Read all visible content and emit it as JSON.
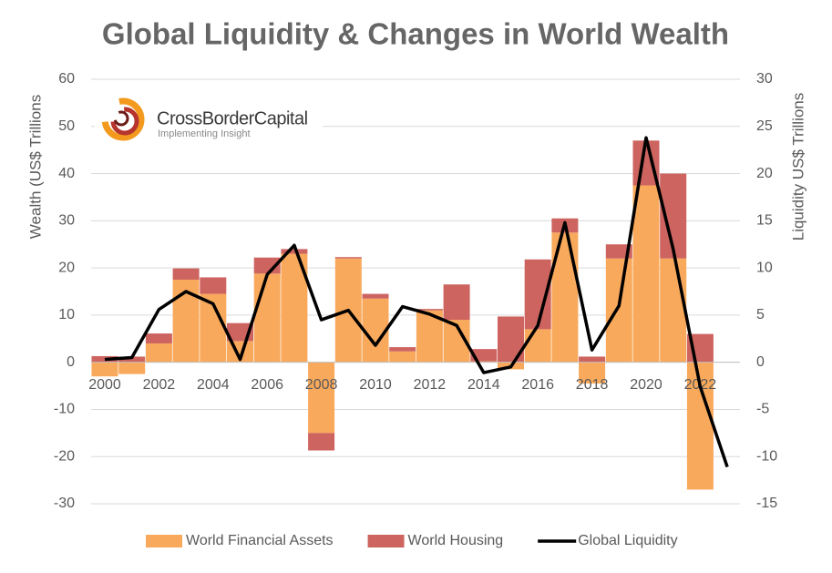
{
  "logo": {
    "name": "CrossBorderCapital",
    "tagline": "Implementing Insight"
  },
  "chart_data": {
    "type": "bar",
    "title": "Global Liquidity & Changes in World Wealth",
    "y_label": "Wealth (US$ Trillions",
    "y2_label": "Liquidity  US$ Trillions",
    "categories": [
      2000,
      null,
      2002,
      null,
      2004,
      null,
      2006,
      null,
      2008,
      null,
      2010,
      null,
      2012,
      null,
      2014,
      null,
      2016,
      null,
      2018,
      null,
      2020,
      null,
      2022,
      null
    ],
    "series": [
      {
        "name": "World Financial Assets",
        "type": "bar",
        "color": "#f9a95b",
        "values": [
          -3,
          -2.5,
          4,
          17.5,
          14.5,
          4.5,
          18.8,
          23,
          -15,
          22,
          13.5,
          2.3,
          11,
          9,
          0.2,
          -1.5,
          7,
          27.5,
          -4.5,
          22,
          37.5,
          22,
          -27,
          null
        ]
      },
      {
        "name": "World Housing",
        "type": "bar",
        "color": "#cd6460",
        "values": [
          1.3,
          1.2,
          2.1,
          2.4,
          3.5,
          3.8,
          3.4,
          1,
          -3.7,
          0.3,
          1,
          0.9,
          0.3,
          7.5,
          2.6,
          9.7,
          14.8,
          3,
          1.2,
          3,
          9.5,
          18,
          6,
          null
        ]
      },
      {
        "name": "Global Liquidity",
        "type": "line",
        "axis": "y2",
        "color": "#000000",
        "values": [
          0.3,
          0.5,
          5.6,
          7.5,
          6.2,
          0.3,
          9.3,
          12.4,
          4.5,
          5.5,
          1.8,
          5.9,
          5.1,
          3.9,
          -1.1,
          -0.5,
          3.9,
          14.8,
          1.3,
          6,
          23.8,
          12,
          -2.6,
          -11.1
        ]
      }
    ],
    "ylim": [
      -30,
      60
    ],
    "yticks": [
      -30,
      -20,
      -10,
      0,
      10,
      20,
      30,
      40,
      50,
      60
    ],
    "y2lim": [
      -15,
      30
    ],
    "y2ticks": [
      -15,
      -10,
      -5,
      0,
      5,
      10,
      15,
      20,
      25,
      30
    ],
    "grid": true,
    "legend": "bottom"
  }
}
